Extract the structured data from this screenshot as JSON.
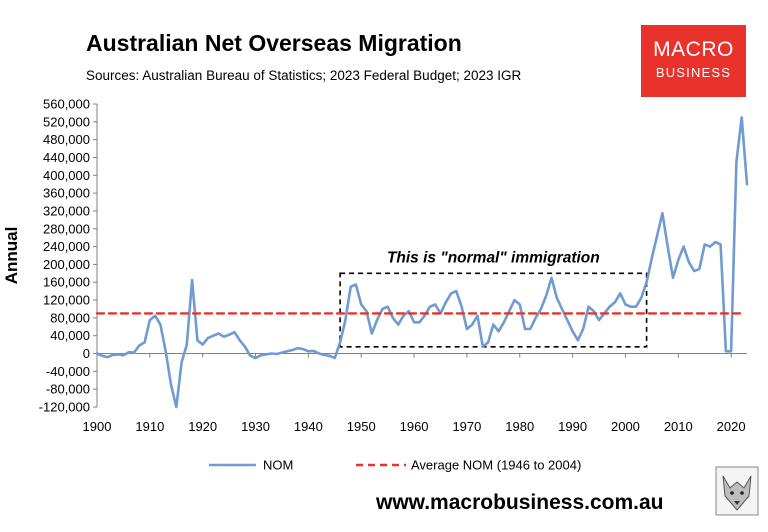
{
  "header": {
    "title": "Australian Net Overseas Migration",
    "subtitle": "Sources: Australian Bureau of Statistics; 2023 Federal Budget; 2023 IGR"
  },
  "brand": {
    "line1": "MACRO",
    "line2": "BUSINESS",
    "color": "#e8322b"
  },
  "footer": {
    "url": "www.macrobusiness.com.au"
  },
  "chart_data": {
    "type": "line",
    "title": "Australian Net Overseas Migration",
    "subtitle": "Sources: Australian Bureau of Statistics; 2023 Federal Budget; 2023 IGR",
    "ylabel": "Annual",
    "xlim": [
      1900,
      2023
    ],
    "ylim": [
      -120000,
      560000
    ],
    "yticks": [
      -120000,
      -80000,
      -40000,
      0,
      40000,
      80000,
      120000,
      160000,
      200000,
      240000,
      280000,
      320000,
      360000,
      400000,
      440000,
      480000,
      520000,
      560000
    ],
    "ytick_labels": [
      "-120,000",
      "-80,000",
      "-40,000",
      "0",
      "40,000",
      "80,000",
      "120,000",
      "160,000",
      "200,000",
      "240,000",
      "280,000",
      "320,000",
      "360,000",
      "400,000",
      "440,000",
      "480,000",
      "520,000",
      "560,000"
    ],
    "xticks": [
      1900,
      1910,
      1920,
      1930,
      1940,
      1950,
      1960,
      1970,
      1980,
      1990,
      2000,
      2010,
      2020
    ],
    "xtick_labels": [
      "1900",
      "1910",
      "1920",
      "1930",
      "1940",
      "1950",
      "1960",
      "1970",
      "1980",
      "1990",
      "2000",
      "2010",
      "2020"
    ],
    "grid": false,
    "legend_position": "bottom",
    "series": [
      {
        "name": "NOM",
        "color": "#6f9bd1",
        "x": [
          1900,
          1901,
          1902,
          1903,
          1904,
          1905,
          1906,
          1907,
          1908,
          1909,
          1910,
          1911,
          1912,
          1913,
          1914,
          1915,
          1916,
          1917,
          1918,
          1919,
          1920,
          1921,
          1922,
          1923,
          1924,
          1925,
          1926,
          1927,
          1928,
          1929,
          1930,
          1931,
          1932,
          1933,
          1934,
          1935,
          1936,
          1937,
          1938,
          1939,
          1940,
          1941,
          1942,
          1943,
          1944,
          1945,
          1946,
          1947,
          1948,
          1949,
          1950,
          1951,
          1952,
          1953,
          1954,
          1955,
          1956,
          1957,
          1958,
          1959,
          1960,
          1961,
          1962,
          1963,
          1964,
          1965,
          1966,
          1967,
          1968,
          1969,
          1970,
          1971,
          1972,
          1973,
          1974,
          1975,
          1976,
          1977,
          1978,
          1979,
          1980,
          1981,
          1982,
          1983,
          1984,
          1985,
          1986,
          1987,
          1988,
          1989,
          1990,
          1991,
          1992,
          1993,
          1994,
          1995,
          1996,
          1997,
          1998,
          1999,
          2000,
          2001,
          2002,
          2003,
          2004,
          2005,
          2006,
          2007,
          2008,
          2009,
          2010,
          2011,
          2012,
          2013,
          2014,
          2015,
          2016,
          2017,
          2018,
          2019,
          2020,
          2021,
          2022,
          2023
        ],
        "values": [
          0,
          -5000,
          -8000,
          -3000,
          -2000,
          -4000,
          3000,
          2000,
          18000,
          25000,
          75000,
          85000,
          65000,
          5000,
          -70000,
          -120000,
          -20000,
          20000,
          165000,
          30000,
          20000,
          35000,
          40000,
          45000,
          38000,
          42000,
          48000,
          30000,
          15000,
          -5000,
          -10000,
          -4000,
          -2000,
          0,
          -1000,
          2000,
          5000,
          8000,
          12000,
          10000,
          5000,
          6000,
          0,
          -3000,
          -5000,
          -10000,
          25000,
          75000,
          150000,
          155000,
          110000,
          95000,
          45000,
          75000,
          100000,
          105000,
          80000,
          65000,
          85000,
          95000,
          70000,
          70000,
          85000,
          105000,
          110000,
          90000,
          115000,
          135000,
          140000,
          105000,
          55000,
          65000,
          85000,
          15000,
          25000,
          65000,
          50000,
          70000,
          95000,
          120000,
          110000,
          55000,
          55000,
          80000,
          100000,
          130000,
          170000,
          125000,
          100000,
          75000,
          50000,
          30000,
          55000,
          105000,
          95000,
          75000,
          90000,
          105000,
          115000,
          135000,
          110000,
          105000,
          105000,
          125000,
          160000,
          215000,
          265000,
          315000,
          240000,
          170000,
          210000,
          240000,
          205000,
          185000,
          190000,
          245000,
          240000,
          250000,
          245000,
          5000,
          5000,
          430000,
          530000,
          380000
        ]
      },
      {
        "name": "Average NOM (1946 to 2004)",
        "color": "#e8322b",
        "dashed": true,
        "x": [
          1900,
          2022
        ],
        "values": [
          90000,
          90000
        ]
      }
    ],
    "annotations": [
      {
        "text": "This is \"normal\" immigration",
        "x0": 1946,
        "x1": 2004,
        "y0": 15000,
        "y1": 180000
      }
    ]
  }
}
